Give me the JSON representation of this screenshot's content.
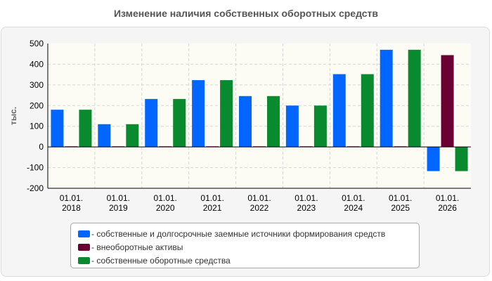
{
  "chart_data": {
    "type": "bar",
    "title": "Изменение наличия собственных оборотных средств",
    "ylabel": "тыс.",
    "xlabel": "",
    "ylim": [
      -200,
      500
    ],
    "yticks": [
      -200,
      -100,
      0,
      100,
      200,
      300,
      400,
      500
    ],
    "grid": true,
    "legend_position": "bottom",
    "categories": [
      [
        "01.01.",
        "2018"
      ],
      [
        "01.01.",
        "2019"
      ],
      [
        "01.01.",
        "2020"
      ],
      [
        "01.01.",
        "2021"
      ],
      [
        "01.01.",
        "2022"
      ],
      [
        "01.01.",
        "2023"
      ],
      [
        "01.01.",
        "2024"
      ],
      [
        "01.01.",
        "2025"
      ],
      [
        "01.01.",
        "2026"
      ]
    ],
    "series": [
      {
        "name": "- собственные и долгосрочные заемные источники формирования средств",
        "color": "#0066ff",
        "values": [
          180,
          110,
          232,
          323,
          246,
          200,
          352,
          470,
          -117
        ]
      },
      {
        "name": "- внеоборотные активы",
        "color": "#6b0033",
        "values": [
          3,
          3,
          3,
          3,
          3,
          3,
          3,
          3,
          444
        ]
      },
      {
        "name": "- собственные оборотные средства",
        "color": "#0a8a2e",
        "values": [
          180,
          110,
          232,
          323,
          246,
          200,
          352,
          470,
          -117
        ]
      }
    ]
  }
}
